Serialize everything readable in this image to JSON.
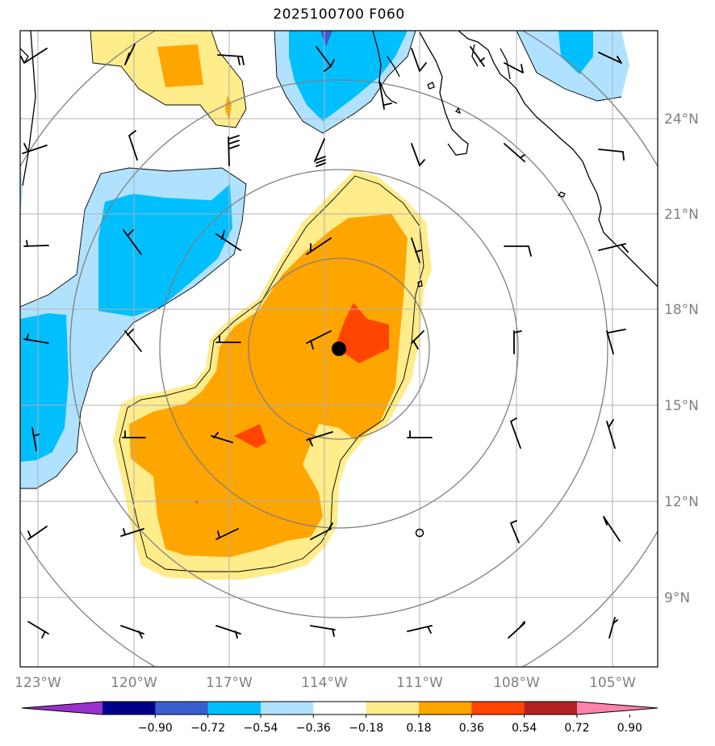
{
  "title": "2025100700 F060",
  "map": {
    "lon_range": [
      -123.5,
      -103.5
    ],
    "lat_range": [
      7,
      27
    ],
    "lon_ticks": [
      "123°W",
      "120°W",
      "117°W",
      "114°W",
      "111°W",
      "108°W",
      "105°W"
    ],
    "lat_ticks": [
      "24°N",
      "21°N",
      "18°N",
      "15°N",
      "12°N",
      "9°N"
    ],
    "storm_center": {
      "lon": -113.6,
      "lat": 16.8
    },
    "range_rings_deg": [
      5,
      8,
      13
    ]
  },
  "colorbar": {
    "labels": [
      "−0.90",
      "−0.72",
      "−0.54",
      "−0.36",
      "−0.18",
      "0.18",
      "0.36",
      "0.54",
      "0.72",
      "0.90"
    ],
    "colors": [
      "#9932cc",
      "#00008b",
      "#3a5fcd",
      "#00bfff",
      "#b0e2ff",
      "#ffffff",
      "#ffec8b",
      "#ffa500",
      "#ff4500",
      "#b22222",
      "#ff82ab"
    ]
  },
  "colors": {
    "pos1": "#ffec8b",
    "pos2": "#ffa500",
    "pos3": "#ff4500",
    "neg1": "#b0e2ff",
    "neg2": "#00bfff",
    "neg3": "#3a5fcd",
    "grid": "#b0b0b0",
    "rings": "#808080"
  }
}
